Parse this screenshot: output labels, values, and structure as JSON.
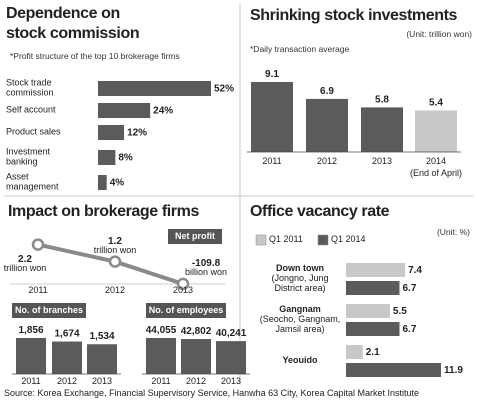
{
  "chart_data": [
    {
      "type": "bar",
      "horizontal": true,
      "title": "Dependence on\nstock commission",
      "subtitle": "*Profit structure of the top 10 brokerage firms",
      "categories": [
        "Stock trade\ncommission",
        "Self account",
        "Product sales",
        "Investment\nbanking",
        "Asset\nmanagement"
      ],
      "values": [
        52,
        24,
        12,
        8,
        4
      ],
      "value_labels": [
        "52%",
        "24%",
        "12%",
        "8%",
        "4%"
      ],
      "color": "#5b5b5b"
    },
    {
      "type": "bar",
      "title": "Shrinking stock investments",
      "unit": "(Unit: trillion won)",
      "subtitle": "*Daily transaction average",
      "categories": [
        "2011",
        "2012",
        "2013",
        "2014\n(End of April)"
      ],
      "values": [
        9.1,
        6.9,
        5.8,
        5.4
      ],
      "colors": [
        "#5b5b5b",
        "#5b5b5b",
        "#5b5b5b",
        "#c8c8c8"
      ]
    },
    {
      "type": "line",
      "title": "Impact on brokerage firms",
      "series_label": "Net profit",
      "categories": [
        "2011",
        "2012",
        "2013"
      ],
      "values": [
        2.2,
        1.2,
        -0.1098
      ],
      "value_labels": [
        "2.2\ntrillion won",
        "1.2\ntrillion won",
        "-109.8\nbillion won"
      ],
      "color": "#8a8a8a"
    },
    {
      "type": "bar",
      "title": "No. of branches",
      "categories": [
        "2011",
        "2012",
        "2013"
      ],
      "values": [
        1856,
        1674,
        1534
      ],
      "value_labels": [
        "1,856",
        "1,674",
        "1,534"
      ],
      "color": "#5b5b5b"
    },
    {
      "type": "bar",
      "title": "No. of employees",
      "categories": [
        "2011",
        "2012",
        "2013"
      ],
      "values": [
        44055,
        42802,
        40241
      ],
      "value_labels": [
        "44,055",
        "42,802",
        "40,241"
      ],
      "color": "#5b5b5b"
    },
    {
      "type": "bar",
      "horizontal": true,
      "title": "Office vacancy rate",
      "unit": "(Unit: %)",
      "categories": [
        "Down town\n(Jongno, Jung\nDistrict area)",
        "Gangnam\n(Seocho, Gangnam,\nJamsil area)",
        "Yeouido"
      ],
      "series": [
        {
          "name": "Q1 2011",
          "color": "#c8c8c8",
          "values": [
            7.4,
            5.5,
            2.1
          ]
        },
        {
          "name": "Q1 2014",
          "color": "#5b5b5b",
          "values": [
            6.7,
            6.7,
            11.9
          ]
        }
      ],
      "legend": "top-left"
    }
  ],
  "source": "Source: Korea Exchange, Financial Supervisory Service, Hanwha 63 City, Korea Capital Market Institute"
}
